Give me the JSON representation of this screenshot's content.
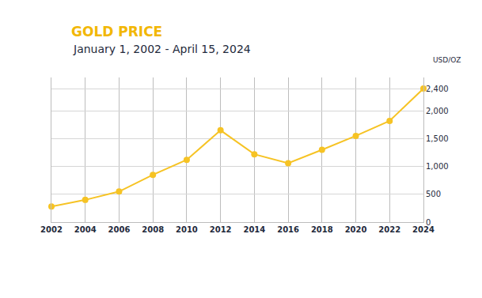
{
  "chart_data": {
    "type": "line",
    "title": "GOLD PRICE",
    "subtitle": "January 1, 2002 - April 15, 2024",
    "ylabel": "USD/OZ",
    "x": [
      2002,
      2004,
      2006,
      2008,
      2010,
      2012,
      2014,
      2016,
      2018,
      2020,
      2022,
      2024
    ],
    "values": [
      280,
      400,
      550,
      850,
      1120,
      1650,
      1220,
      1060,
      1300,
      1550,
      1820,
      2400
    ],
    "color": "#f6c324",
    "marker": "circle",
    "xlim": [
      2002,
      2024
    ],
    "xticks": [
      2002,
      2004,
      2006,
      2008,
      2010,
      2012,
      2014,
      2016,
      2018,
      2020,
      2022,
      2024
    ],
    "ylim": [
      0,
      2600
    ],
    "yticks": [
      0,
      500,
      {
        "value": 1000,
        "label": "1,000"
      },
      {
        "value": 1500,
        "label": "1,500"
      },
      {
        "value": 2000,
        "label": "2,000"
      },
      {
        "value": 2400,
        "label": "2,400"
      }
    ],
    "grid": true
  }
}
